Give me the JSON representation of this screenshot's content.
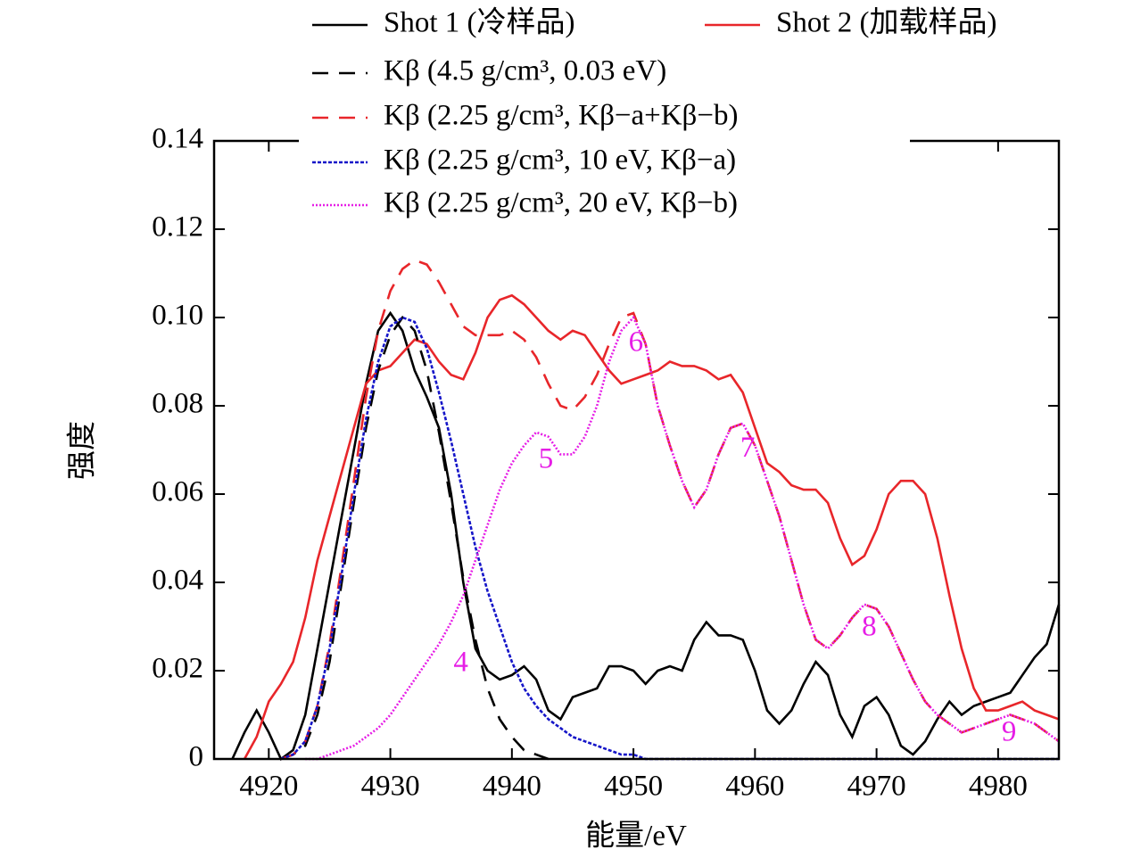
{
  "chart_data": {
    "type": "line",
    "x_label": "能量/eV",
    "y_label": "强度",
    "x": [
      4917,
      4918,
      4919,
      4920,
      4921,
      4922,
      4923,
      4924,
      4925,
      4926,
      4927,
      4928,
      4929,
      4930,
      4931,
      4932,
      4933,
      4934,
      4935,
      4936,
      4937,
      4938,
      4939,
      4940,
      4941,
      4942,
      4943,
      4944,
      4945,
      4946,
      4947,
      4948,
      4949,
      4950,
      4951,
      4952,
      4953,
      4954,
      4955,
      4956,
      4957,
      4958,
      4959,
      4960,
      4961,
      4962,
      4963,
      4964,
      4965,
      4966,
      4967,
      4968,
      4969,
      4970,
      4971,
      4972,
      4973,
      4974,
      4975,
      4976,
      4977,
      4978,
      4979,
      4980,
      4981,
      4982,
      4983,
      4984,
      4985
    ],
    "series": [
      {
        "name": "Shot 1 (冷样品)",
        "color": "#000000",
        "linestyle": "solid",
        "values": [
          0,
          0.006,
          0.011,
          0.006,
          0,
          0.002,
          0.01,
          0.025,
          0.04,
          0.055,
          0.07,
          0.085,
          0.097,
          0.101,
          0.097,
          0.088,
          0.082,
          0.075,
          0.06,
          0.04,
          0.025,
          0.02,
          0.018,
          0.019,
          0.021,
          0.018,
          0.011,
          0.009,
          0.014,
          0.015,
          0.016,
          0.021,
          0.021,
          0.02,
          0.017,
          0.02,
          0.021,
          0.02,
          0.027,
          0.031,
          0.028,
          0.028,
          0.027,
          0.02,
          0.011,
          0.008,
          0.011,
          0.017,
          0.022,
          0.019,
          0.01,
          0.005,
          0.012,
          0.014,
          0.01,
          0.003,
          0.001,
          0.004,
          0.009,
          0.013,
          0.01,
          0.012,
          0.013,
          0.014,
          0.015,
          0.019,
          0.023,
          0.026,
          0.035
        ]
      },
      {
        "name": "Shot 2 (加载样品)",
        "color": "#e8262a",
        "linestyle": "solid",
        "values": [
          null,
          0,
          0.005,
          0.013,
          0.017,
          0.022,
          0.032,
          0.045,
          0.055,
          0.065,
          0.075,
          0.085,
          0.088,
          0.089,
          0.092,
          0.095,
          0.094,
          0.09,
          0.087,
          0.086,
          0.092,
          0.1,
          0.104,
          0.105,
          0.103,
          0.1,
          0.097,
          0.095,
          0.097,
          0.096,
          0.092,
          0.088,
          0.085,
          0.086,
          0.087,
          0.088,
          0.09,
          0.089,
          0.089,
          0.088,
          0.086,
          0.087,
          0.083,
          0.075,
          0.067,
          0.065,
          0.062,
          0.061,
          0.061,
          0.058,
          0.05,
          0.044,
          0.046,
          0.052,
          0.06,
          0.063,
          0.063,
          0.06,
          0.05,
          0.037,
          0.025,
          0.016,
          0.011,
          0.011,
          0.012,
          0.013,
          0.011,
          0.01,
          0.009
        ]
      },
      {
        "name": "Kβ (4.5 g/cm³, 0.03 eV)",
        "color": "#000000",
        "linestyle": "dashed",
        "values": [
          null,
          null,
          null,
          null,
          0,
          0.001,
          0.003,
          0.01,
          0.022,
          0.04,
          0.058,
          0.075,
          0.088,
          0.096,
          0.1,
          0.097,
          0.088,
          0.074,
          0.058,
          0.041,
          0.027,
          0.016,
          0.009,
          0.005,
          0.002,
          0.001,
          0,
          null,
          null,
          null,
          null,
          null,
          null,
          null,
          null,
          null,
          null,
          null,
          null,
          null,
          null,
          null,
          null,
          null,
          null,
          null,
          null,
          null,
          null,
          null,
          null,
          null,
          null,
          null,
          null,
          null,
          null,
          null,
          null,
          null,
          null,
          null,
          null,
          null,
          null,
          null,
          null,
          null,
          null
        ]
      },
      {
        "name": "Kβ (2.25 g/cm³, Kβ−a+Kβ−b)",
        "color": "#e8262a",
        "linestyle": "dashed",
        "values": [
          null,
          null,
          null,
          null,
          0,
          0.001,
          0.004,
          0.012,
          0.026,
          0.044,
          0.063,
          0.082,
          0.097,
          0.106,
          0.111,
          0.113,
          0.112,
          0.108,
          0.103,
          0.098,
          0.096,
          0.096,
          0.096,
          0.097,
          0.095,
          0.091,
          0.085,
          0.08,
          0.079,
          0.082,
          0.087,
          0.094,
          0.1,
          0.101,
          0.094,
          0.08,
          0.071,
          0.063,
          0.057,
          0.061,
          0.069,
          0.075,
          0.076,
          0.071,
          0.063,
          0.055,
          0.045,
          0.035,
          0.027,
          0.025,
          0.028,
          0.032,
          0.035,
          0.034,
          0.03,
          0.024,
          0.018,
          0.013,
          0.01,
          0.008,
          0.006,
          0.007,
          0.008,
          0.009,
          0.01,
          0.009,
          0.008,
          0.006,
          0.004
        ]
      },
      {
        "name": "Kβ (2.25 g/cm³, 10 eV, Kβ−a)",
        "color": "#1515c8",
        "linestyle": "dotted",
        "values": [
          null,
          null,
          null,
          null,
          0,
          0.001,
          0.004,
          0.012,
          0.025,
          0.042,
          0.06,
          0.077,
          0.09,
          0.098,
          0.1,
          0.099,
          0.093,
          0.083,
          0.072,
          0.06,
          0.048,
          0.038,
          0.03,
          0.022,
          0.016,
          0.012,
          0.009,
          0.007,
          0.005,
          0.004,
          0.003,
          0.002,
          0.001,
          0.001,
          0,
          0,
          0,
          0,
          0,
          0,
          0,
          0,
          0,
          0,
          0,
          0,
          0,
          0,
          0,
          0,
          0,
          0,
          0,
          0,
          0,
          0,
          0,
          0,
          0,
          0,
          0,
          0,
          0,
          0,
          0,
          0,
          0,
          0,
          0
        ]
      },
      {
        "name": "Kβ (2.25 g/cm³, 20 eV, Kβ−b)",
        "color": "#e61ee6",
        "linestyle": "fine-dotted",
        "values": [
          null,
          null,
          null,
          null,
          null,
          null,
          0,
          0,
          0.001,
          0.002,
          0.003,
          0.005,
          0.007,
          0.01,
          0.014,
          0.018,
          0.022,
          0.026,
          0.031,
          0.037,
          0.045,
          0.053,
          0.061,
          0.067,
          0.071,
          0.074,
          0.073,
          0.069,
          0.069,
          0.073,
          0.08,
          0.09,
          0.097,
          0.1,
          0.094,
          0.08,
          0.071,
          0.063,
          0.057,
          0.061,
          0.069,
          0.075,
          0.076,
          0.071,
          0.063,
          0.055,
          0.045,
          0.035,
          0.027,
          0.025,
          0.028,
          0.032,
          0.035,
          0.034,
          0.03,
          0.024,
          0.018,
          0.013,
          0.01,
          0.008,
          0.006,
          0.007,
          0.008,
          0.009,
          0.01,
          0.009,
          0.008,
          0.006,
          0.004
        ]
      }
    ],
    "xlim": [
      4915.5,
      4985
    ],
    "ylim": [
      0,
      0.14
    ],
    "xticks": [
      4920,
      4930,
      4940,
      4950,
      4960,
      4970,
      4980
    ],
    "yticks": [
      0,
      0.02,
      0.04,
      0.06,
      0.08,
      {
        "value": 0.1,
        "label": "0.10"
      },
      0.12,
      0.14
    ],
    "legend": "top",
    "annotations": [
      {
        "text": "4",
        "x": 4935.8,
        "y": 0.0214,
        "color": "#e61ee6"
      },
      {
        "text": "5",
        "x": 4942.8,
        "y": 0.0675,
        "color": "#e61ee6"
      },
      {
        "text": "6",
        "x": 4950.2,
        "y": 0.094,
        "color": "#e61ee6"
      },
      {
        "text": "7",
        "x": 4959.4,
        "y": 0.07,
        "color": "#e61ee6"
      },
      {
        "text": "8",
        "x": 4969.4,
        "y": 0.0295,
        "color": "#e61ee6"
      },
      {
        "text": "9",
        "x": 4980.9,
        "y": 0.0057,
        "color": "#e61ee6"
      }
    ]
  }
}
